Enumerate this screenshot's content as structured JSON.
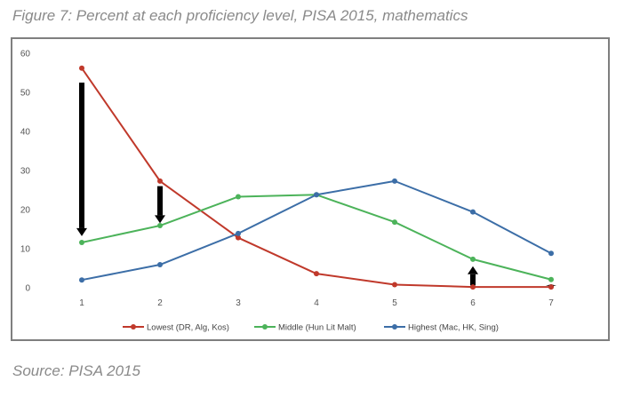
{
  "figure_title": "Figure 7: Percent at each proficiency level, PISA 2015, mathematics",
  "source": "Source: PISA 2015",
  "chart_data": {
    "type": "line",
    "x": [
      1,
      2,
      3,
      4,
      5,
      6,
      7
    ],
    "ylim": [
      0,
      60
    ],
    "yticks": [
      0,
      10,
      20,
      30,
      40,
      50,
      60
    ],
    "grid": false,
    "legend_placement": "bottom",
    "series": [
      {
        "name": "Lowest (DR, Alg, Kos)",
        "color": "#c0392b",
        "values": [
          56.2,
          27.3,
          12.8,
          3.6,
          0.8,
          0.2,
          0.2
        ]
      },
      {
        "name": "Middle (Hun Lit Malt)",
        "color": "#4cb35a",
        "values": [
          11.6,
          15.9,
          23.3,
          23.8,
          16.8,
          7.3,
          2.1
        ]
      },
      {
        "name": "Highest (Mac, HK, Sing)",
        "color": "#3c6ea7",
        "values": [
          2.0,
          5.9,
          13.9,
          23.8,
          27.3,
          19.4,
          8.8
        ]
      }
    ],
    "annotations": [
      {
        "type": "arrow",
        "x": 1,
        "from": 52.5,
        "to": 13.2
      },
      {
        "type": "arrow",
        "x": 2,
        "from": 26.0,
        "to": 16.5
      },
      {
        "type": "arrow",
        "x": 6,
        "from": 0.6,
        "to": 5.5
      },
      {
        "type": "arrow",
        "x": 7,
        "from": 0.2,
        "to": 0.9
      }
    ]
  }
}
